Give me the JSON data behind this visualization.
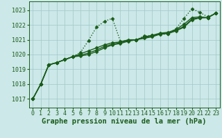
{
  "background_color": "#cce8e8",
  "grid_color": "#9fc8c8",
  "line_color": "#1a5c1a",
  "xlabel": "Graphe pression niveau de la mer (hPa)",
  "xlabel_fontsize": 7.5,
  "tick_fontsize": 6,
  "xlim": [
    -0.5,
    23.5
  ],
  "ylim": [
    1016.4,
    1023.6
  ],
  "yticks": [
    1017,
    1018,
    1019,
    1020,
    1021,
    1022,
    1023
  ],
  "xticks": [
    0,
    1,
    2,
    3,
    4,
    5,
    6,
    7,
    8,
    9,
    10,
    11,
    12,
    13,
    14,
    15,
    16,
    17,
    18,
    19,
    20,
    21,
    22,
    23
  ],
  "series": [
    {
      "x": [
        0,
        1,
        2,
        3,
        4,
        5,
        6,
        7,
        8,
        9,
        10,
        11,
        12,
        13,
        14,
        15,
        16,
        17,
        18,
        19,
        20,
        21,
        22,
        23
      ],
      "y": [
        1017.0,
        1018.0,
        1019.3,
        1019.45,
        1019.65,
        1019.85,
        1020.15,
        1020.95,
        1021.85,
        1022.25,
        1022.45,
        1020.9,
        1020.95,
        1021.0,
        1021.25,
        1021.3,
        1021.35,
        1021.4,
        1021.75,
        1022.45,
        1023.1,
        1022.85,
        1022.55,
        1022.8
      ],
      "linestyle": "dotted",
      "linewidth": 1.0,
      "marker": "D",
      "markersize": 2.5
    },
    {
      "x": [
        0,
        1,
        2,
        3,
        4,
        5,
        6,
        7,
        8,
        9,
        10,
        11,
        12,
        13,
        14,
        15,
        16,
        17,
        18,
        19,
        20,
        21,
        22,
        23
      ],
      "y": [
        1017.0,
        1018.0,
        1019.3,
        1019.45,
        1019.65,
        1019.85,
        1020.05,
        1020.25,
        1020.45,
        1020.65,
        1020.8,
        1020.85,
        1021.0,
        1021.0,
        1021.2,
        1021.3,
        1021.45,
        1021.5,
        1021.7,
        1022.05,
        1022.5,
        1022.55,
        1022.5,
        1022.8
      ],
      "linestyle": "solid",
      "linewidth": 1.0,
      "marker": "D",
      "markersize": 2.5
    },
    {
      "x": [
        0,
        1,
        2,
        3,
        4,
        5,
        6,
        7,
        8,
        9,
        10,
        11,
        12,
        13,
        14,
        15,
        16,
        17,
        18,
        19,
        20,
        21,
        22,
        23
      ],
      "y": [
        1017.0,
        1018.0,
        1019.3,
        1019.45,
        1019.65,
        1019.85,
        1019.95,
        1020.1,
        1020.3,
        1020.55,
        1020.7,
        1020.8,
        1020.95,
        1021.0,
        1021.15,
        1021.25,
        1021.4,
        1021.45,
        1021.65,
        1021.9,
        1022.4,
        1022.5,
        1022.5,
        1022.8
      ],
      "linestyle": "solid",
      "linewidth": 1.0,
      "marker": "D",
      "markersize": 2.5
    },
    {
      "x": [
        0,
        1,
        2,
        3,
        4,
        5,
        6,
        7,
        8,
        9,
        10,
        11,
        12,
        13,
        14,
        15,
        16,
        17,
        18,
        19,
        20,
        21,
        22,
        23
      ],
      "y": [
        1017.0,
        1018.0,
        1019.3,
        1019.45,
        1019.65,
        1019.85,
        1019.9,
        1020.0,
        1020.2,
        1020.45,
        1020.65,
        1020.75,
        1020.9,
        1021.0,
        1021.1,
        1021.2,
        1021.38,
        1021.42,
        1021.6,
        1021.85,
        1022.35,
        1022.48,
        1022.5,
        1022.8
      ],
      "linestyle": "solid",
      "linewidth": 1.0,
      "marker": "D",
      "markersize": 2.5
    }
  ]
}
